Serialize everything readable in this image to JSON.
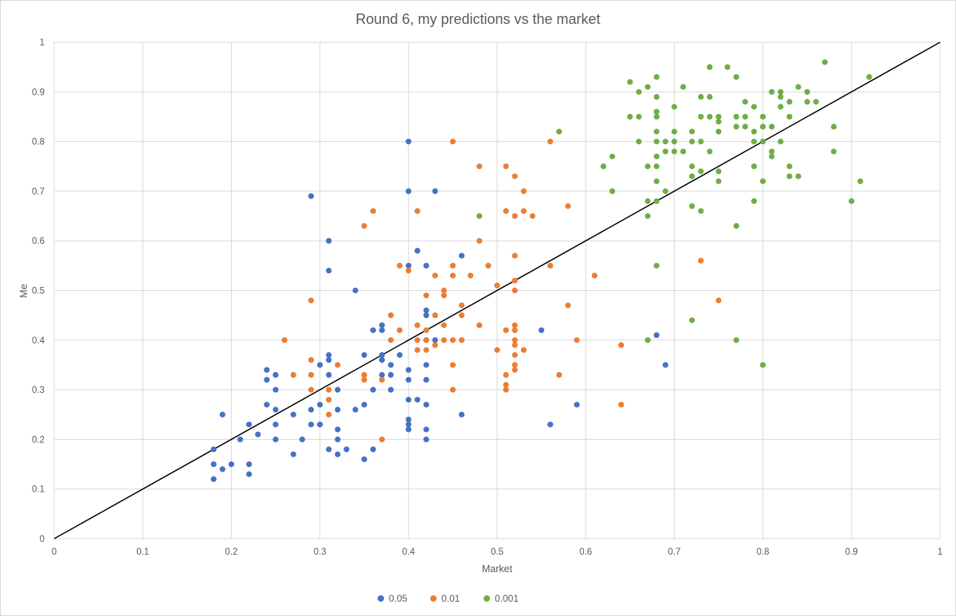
{
  "chart_data": {
    "type": "scatter",
    "title": "Round 6, my predictions vs the market",
    "xlabel": "Market",
    "ylabel": "Me",
    "xlim": [
      0,
      1
    ],
    "ylim": [
      0,
      1
    ],
    "x_ticks": [
      "0",
      "0.1",
      "0.2",
      "0.3",
      "0.4",
      "0.5",
      "0.6",
      "0.7",
      "0.8",
      "0.9",
      "1"
    ],
    "y_ticks": [
      "0",
      "0.1",
      "0.2",
      "0.3",
      "0.4",
      "0.5",
      "0.6",
      "0.7",
      "0.8",
      "0.9",
      "1"
    ],
    "grid": true,
    "legend_position": "bottom",
    "reference_line": {
      "from": [
        0,
        0
      ],
      "to": [
        1,
        1
      ],
      "color": "#000000"
    },
    "series": [
      {
        "name": "0.05",
        "color": "#4472c4",
        "points": [
          [
            0.18,
            0.18
          ],
          [
            0.18,
            0.15
          ],
          [
            0.18,
            0.12
          ],
          [
            0.19,
            0.25
          ],
          [
            0.19,
            0.14
          ],
          [
            0.2,
            0.15
          ],
          [
            0.21,
            0.2
          ],
          [
            0.22,
            0.23
          ],
          [
            0.22,
            0.15
          ],
          [
            0.22,
            0.13
          ],
          [
            0.23,
            0.21
          ],
          [
            0.24,
            0.34
          ],
          [
            0.24,
            0.32
          ],
          [
            0.24,
            0.27
          ],
          [
            0.25,
            0.33
          ],
          [
            0.25,
            0.3
          ],
          [
            0.25,
            0.26
          ],
          [
            0.25,
            0.23
          ],
          [
            0.25,
            0.2
          ],
          [
            0.27,
            0.25
          ],
          [
            0.27,
            0.17
          ],
          [
            0.28,
            0.2
          ],
          [
            0.29,
            0.69
          ],
          [
            0.29,
            0.26
          ],
          [
            0.29,
            0.23
          ],
          [
            0.3,
            0.35
          ],
          [
            0.3,
            0.27
          ],
          [
            0.3,
            0.23
          ],
          [
            0.31,
            0.6
          ],
          [
            0.31,
            0.54
          ],
          [
            0.31,
            0.37
          ],
          [
            0.31,
            0.36
          ],
          [
            0.31,
            0.33
          ],
          [
            0.31,
            0.18
          ],
          [
            0.32,
            0.3
          ],
          [
            0.32,
            0.26
          ],
          [
            0.32,
            0.22
          ],
          [
            0.32,
            0.2
          ],
          [
            0.32,
            0.17
          ],
          [
            0.33,
            0.18
          ],
          [
            0.34,
            0.5
          ],
          [
            0.34,
            0.26
          ],
          [
            0.35,
            0.37
          ],
          [
            0.35,
            0.27
          ],
          [
            0.35,
            0.16
          ],
          [
            0.36,
            0.42
          ],
          [
            0.36,
            0.3
          ],
          [
            0.36,
            0.18
          ],
          [
            0.37,
            0.43
          ],
          [
            0.37,
            0.42
          ],
          [
            0.37,
            0.37
          ],
          [
            0.37,
            0.36
          ],
          [
            0.37,
            0.33
          ],
          [
            0.38,
            0.35
          ],
          [
            0.38,
            0.33
          ],
          [
            0.38,
            0.3
          ],
          [
            0.39,
            0.37
          ],
          [
            0.4,
            0.8
          ],
          [
            0.4,
            0.7
          ],
          [
            0.4,
            0.55
          ],
          [
            0.4,
            0.34
          ],
          [
            0.4,
            0.32
          ],
          [
            0.4,
            0.28
          ],
          [
            0.4,
            0.24
          ],
          [
            0.4,
            0.23
          ],
          [
            0.4,
            0.22
          ],
          [
            0.41,
            0.58
          ],
          [
            0.41,
            0.28
          ],
          [
            0.42,
            0.55
          ],
          [
            0.42,
            0.46
          ],
          [
            0.42,
            0.45
          ],
          [
            0.42,
            0.4
          ],
          [
            0.42,
            0.35
          ],
          [
            0.42,
            0.32
          ],
          [
            0.42,
            0.27
          ],
          [
            0.42,
            0.22
          ],
          [
            0.42,
            0.2
          ],
          [
            0.43,
            0.7
          ],
          [
            0.43,
            0.4
          ],
          [
            0.46,
            0.57
          ],
          [
            0.46,
            0.25
          ],
          [
            0.55,
            0.42
          ],
          [
            0.56,
            0.23
          ],
          [
            0.59,
            0.27
          ],
          [
            0.68,
            0.41
          ],
          [
            0.69,
            0.35
          ]
        ]
      },
      {
        "name": "0.01",
        "color": "#ed7d31",
        "points": [
          [
            0.26,
            0.4
          ],
          [
            0.27,
            0.33
          ],
          [
            0.29,
            0.48
          ],
          [
            0.29,
            0.36
          ],
          [
            0.29,
            0.33
          ],
          [
            0.29,
            0.3
          ],
          [
            0.31,
            0.3
          ],
          [
            0.31,
            0.28
          ],
          [
            0.31,
            0.25
          ],
          [
            0.32,
            0.35
          ],
          [
            0.35,
            0.63
          ],
          [
            0.35,
            0.33
          ],
          [
            0.35,
            0.32
          ],
          [
            0.36,
            0.66
          ],
          [
            0.37,
            0.32
          ],
          [
            0.37,
            0.2
          ],
          [
            0.38,
            0.45
          ],
          [
            0.38,
            0.4
          ],
          [
            0.39,
            0.55
          ],
          [
            0.39,
            0.42
          ],
          [
            0.4,
            0.54
          ],
          [
            0.41,
            0.66
          ],
          [
            0.41,
            0.43
          ],
          [
            0.41,
            0.4
          ],
          [
            0.41,
            0.38
          ],
          [
            0.42,
            0.49
          ],
          [
            0.42,
            0.42
          ],
          [
            0.42,
            0.4
          ],
          [
            0.42,
            0.38
          ],
          [
            0.43,
            0.53
          ],
          [
            0.43,
            0.45
          ],
          [
            0.43,
            0.39
          ],
          [
            0.44,
            0.5
          ],
          [
            0.44,
            0.49
          ],
          [
            0.44,
            0.43
          ],
          [
            0.44,
            0.4
          ],
          [
            0.45,
            0.8
          ],
          [
            0.45,
            0.55
          ],
          [
            0.45,
            0.53
          ],
          [
            0.45,
            0.4
          ],
          [
            0.45,
            0.35
          ],
          [
            0.45,
            0.3
          ],
          [
            0.46,
            0.47
          ],
          [
            0.46,
            0.45
          ],
          [
            0.46,
            0.4
          ],
          [
            0.47,
            0.53
          ],
          [
            0.48,
            0.75
          ],
          [
            0.48,
            0.6
          ],
          [
            0.48,
            0.43
          ],
          [
            0.49,
            0.55
          ],
          [
            0.5,
            0.51
          ],
          [
            0.5,
            0.38
          ],
          [
            0.51,
            0.75
          ],
          [
            0.51,
            0.66
          ],
          [
            0.51,
            0.42
          ],
          [
            0.51,
            0.33
          ],
          [
            0.51,
            0.31
          ],
          [
            0.51,
            0.3
          ],
          [
            0.52,
            0.73
          ],
          [
            0.52,
            0.65
          ],
          [
            0.52,
            0.57
          ],
          [
            0.52,
            0.52
          ],
          [
            0.52,
            0.5
          ],
          [
            0.52,
            0.43
          ],
          [
            0.52,
            0.42
          ],
          [
            0.52,
            0.4
          ],
          [
            0.52,
            0.39
          ],
          [
            0.52,
            0.37
          ],
          [
            0.52,
            0.35
          ],
          [
            0.52,
            0.34
          ],
          [
            0.53,
            0.7
          ],
          [
            0.53,
            0.66
          ],
          [
            0.53,
            0.38
          ],
          [
            0.54,
            0.65
          ],
          [
            0.56,
            0.8
          ],
          [
            0.56,
            0.55
          ],
          [
            0.57,
            0.33
          ],
          [
            0.58,
            0.67
          ],
          [
            0.58,
            0.47
          ],
          [
            0.59,
            0.4
          ],
          [
            0.61,
            0.53
          ],
          [
            0.64,
            0.39
          ],
          [
            0.64,
            0.27
          ],
          [
            0.73,
            0.56
          ],
          [
            0.75,
            0.48
          ]
        ]
      },
      {
        "name": "0.001",
        "color": "#70ad47",
        "points": [
          [
            0.48,
            0.65
          ],
          [
            0.57,
            0.82
          ],
          [
            0.62,
            0.75
          ],
          [
            0.63,
            0.77
          ],
          [
            0.63,
            0.7
          ],
          [
            0.65,
            0.92
          ],
          [
            0.65,
            0.85
          ],
          [
            0.66,
            0.9
          ],
          [
            0.66,
            0.85
          ],
          [
            0.66,
            0.8
          ],
          [
            0.67,
            0.91
          ],
          [
            0.67,
            0.75
          ],
          [
            0.67,
            0.68
          ],
          [
            0.67,
            0.65
          ],
          [
            0.67,
            0.4
          ],
          [
            0.68,
            0.93
          ],
          [
            0.68,
            0.89
          ],
          [
            0.68,
            0.86
          ],
          [
            0.68,
            0.85
          ],
          [
            0.68,
            0.82
          ],
          [
            0.68,
            0.8
          ],
          [
            0.68,
            0.77
          ],
          [
            0.68,
            0.75
          ],
          [
            0.68,
            0.72
          ],
          [
            0.68,
            0.68
          ],
          [
            0.68,
            0.55
          ],
          [
            0.69,
            0.8
          ],
          [
            0.69,
            0.78
          ],
          [
            0.69,
            0.7
          ],
          [
            0.7,
            0.87
          ],
          [
            0.7,
            0.82
          ],
          [
            0.7,
            0.8
          ],
          [
            0.7,
            0.78
          ],
          [
            0.71,
            0.91
          ],
          [
            0.71,
            0.78
          ],
          [
            0.72,
            0.82
          ],
          [
            0.72,
            0.8
          ],
          [
            0.72,
            0.75
          ],
          [
            0.72,
            0.73
          ],
          [
            0.72,
            0.67
          ],
          [
            0.72,
            0.44
          ],
          [
            0.73,
            0.89
          ],
          [
            0.73,
            0.85
          ],
          [
            0.73,
            0.8
          ],
          [
            0.73,
            0.74
          ],
          [
            0.73,
            0.66
          ],
          [
            0.74,
            0.95
          ],
          [
            0.74,
            0.89
          ],
          [
            0.74,
            0.85
          ],
          [
            0.74,
            0.78
          ],
          [
            0.75,
            0.85
          ],
          [
            0.75,
            0.84
          ],
          [
            0.75,
            0.82
          ],
          [
            0.75,
            0.74
          ],
          [
            0.75,
            0.72
          ],
          [
            0.76,
            0.95
          ],
          [
            0.77,
            0.93
          ],
          [
            0.77,
            0.85
          ],
          [
            0.77,
            0.83
          ],
          [
            0.77,
            0.63
          ],
          [
            0.77,
            0.4
          ],
          [
            0.78,
            0.88
          ],
          [
            0.78,
            0.85
          ],
          [
            0.78,
            0.83
          ],
          [
            0.79,
            0.87
          ],
          [
            0.79,
            0.82
          ],
          [
            0.79,
            0.8
          ],
          [
            0.79,
            0.75
          ],
          [
            0.79,
            0.68
          ],
          [
            0.8,
            0.85
          ],
          [
            0.8,
            0.83
          ],
          [
            0.8,
            0.8
          ],
          [
            0.8,
            0.72
          ],
          [
            0.8,
            0.35
          ],
          [
            0.81,
            0.9
          ],
          [
            0.81,
            0.83
          ],
          [
            0.81,
            0.78
          ],
          [
            0.81,
            0.77
          ],
          [
            0.82,
            0.9
          ],
          [
            0.82,
            0.89
          ],
          [
            0.82,
            0.87
          ],
          [
            0.82,
            0.8
          ],
          [
            0.83,
            0.88
          ],
          [
            0.83,
            0.85
          ],
          [
            0.83,
            0.75
          ],
          [
            0.83,
            0.73
          ],
          [
            0.84,
            0.91
          ],
          [
            0.84,
            0.73
          ],
          [
            0.85,
            0.9
          ],
          [
            0.85,
            0.88
          ],
          [
            0.86,
            0.88
          ],
          [
            0.87,
            0.96
          ],
          [
            0.88,
            0.83
          ],
          [
            0.88,
            0.78
          ],
          [
            0.9,
            0.68
          ],
          [
            0.91,
            0.72
          ],
          [
            0.92,
            0.93
          ]
        ]
      }
    ]
  }
}
